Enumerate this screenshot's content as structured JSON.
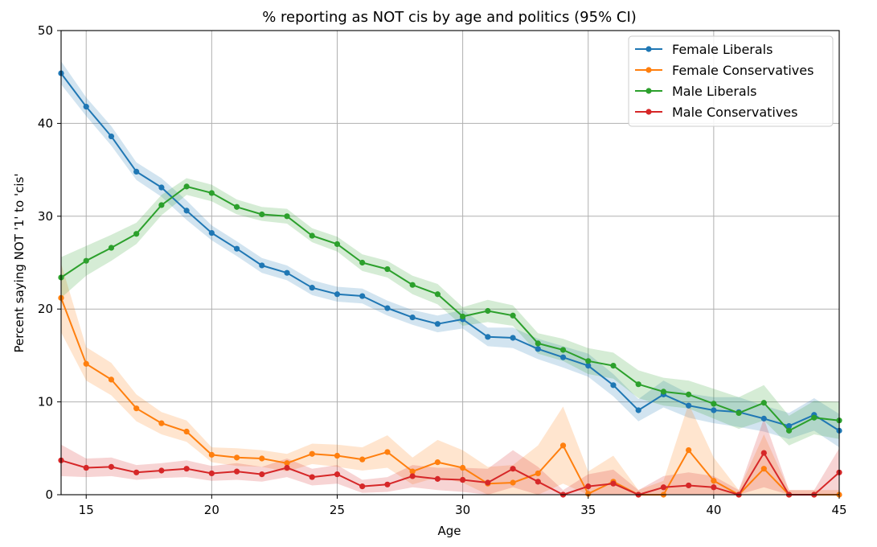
{
  "chart_data": {
    "type": "line",
    "title": "% reporting as NOT cis by age and politics (95% CI)",
    "xlabel": "Age",
    "ylabel": "Percent saying NOT '1' to 'cis'",
    "xlim": [
      14,
      45
    ],
    "ylim": [
      0,
      50
    ],
    "xticks": [
      15,
      20,
      25,
      30,
      35,
      40,
      45
    ],
    "yticks": [
      0,
      10,
      20,
      30,
      40,
      50
    ],
    "grid": true,
    "legend_position": "top-right",
    "x": [
      14,
      15,
      16,
      17,
      18,
      19,
      20,
      21,
      22,
      23,
      24,
      25,
      26,
      27,
      28,
      29,
      30,
      31,
      32,
      33,
      34,
      35,
      36,
      37,
      38,
      39,
      40,
      41,
      42,
      43,
      44,
      45
    ],
    "series": [
      {
        "name": "Female Liberals",
        "color": "#1f77b4",
        "values": [
          45.4,
          41.8,
          38.6,
          34.8,
          33.1,
          30.6,
          28.2,
          26.5,
          24.7,
          23.9,
          22.3,
          21.6,
          21.4,
          20.1,
          19.1,
          18.4,
          18.9,
          17.0,
          16.9,
          15.7,
          14.8,
          13.9,
          11.8,
          9.1,
          10.8,
          9.6,
          9.1,
          8.9,
          8.2,
          7.4,
          8.6,
          6.9
        ],
        "ci_low": [
          44.2,
          40.8,
          37.6,
          33.9,
          32.1,
          29.6,
          27.4,
          25.7,
          23.9,
          23.1,
          21.5,
          20.8,
          20.6,
          19.3,
          18.3,
          17.5,
          17.9,
          16.0,
          15.8,
          14.6,
          13.7,
          12.7,
          10.6,
          7.9,
          9.4,
          8.3,
          7.7,
          7.3,
          6.8,
          6.0,
          6.9,
          5.1
        ],
        "ci_high": [
          46.7,
          42.8,
          39.7,
          35.8,
          34.1,
          31.7,
          29.0,
          27.3,
          25.5,
          24.7,
          23.1,
          22.4,
          22.2,
          20.9,
          19.9,
          19.3,
          19.9,
          18.0,
          18.0,
          16.8,
          16.0,
          15.2,
          13.0,
          10.3,
          12.3,
          10.9,
          10.5,
          10.5,
          9.6,
          8.8,
          10.4,
          8.7
        ]
      },
      {
        "name": "Female Conservatives",
        "color": "#ff7f0e",
        "values": [
          21.2,
          14.1,
          12.4,
          9.3,
          7.7,
          6.8,
          4.3,
          4.0,
          3.9,
          3.4,
          4.4,
          4.2,
          3.8,
          4.6,
          2.5,
          3.5,
          2.9,
          1.2,
          1.3,
          2.3,
          5.3,
          0.1,
          1.4,
          0.0,
          0.0,
          4.8,
          1.5,
          0.0,
          2.8,
          0.0,
          0.0,
          0.0
        ],
        "ci_low": [
          17.5,
          12.3,
          10.7,
          7.9,
          6.5,
          5.7,
          3.5,
          3.1,
          3.0,
          2.5,
          3.3,
          3.0,
          2.6,
          2.9,
          1.1,
          1.9,
          1.3,
          0.0,
          0.0,
          0.0,
          1.2,
          0.0,
          0.0,
          0.0,
          0.0,
          0.0,
          0.0,
          0.0,
          0.0,
          0.0,
          0.0,
          0.0
        ],
        "ci_high": [
          24.9,
          15.9,
          14.2,
          10.8,
          8.9,
          8.0,
          5.1,
          5.0,
          4.8,
          4.4,
          5.5,
          5.4,
          5.1,
          6.4,
          4.0,
          5.9,
          4.8,
          3.0,
          3.2,
          5.3,
          9.5,
          2.5,
          4.2,
          0.5,
          1.5,
          9.8,
          4.0,
          0.5,
          6.5,
          0.5,
          0.5,
          0.5
        ]
      },
      {
        "name": "Male Liberals",
        "color": "#2ca02c",
        "values": [
          23.4,
          25.2,
          26.6,
          28.1,
          31.2,
          33.2,
          32.5,
          31.0,
          30.2,
          30.0,
          27.9,
          27.0,
          25.0,
          24.3,
          22.6,
          21.6,
          19.2,
          19.8,
          19.3,
          16.3,
          15.6,
          14.4,
          13.9,
          11.9,
          11.1,
          10.8,
          9.8,
          8.8,
          9.9,
          6.9,
          8.3,
          8.0
        ],
        "ci_low": [
          21.2,
          23.6,
          25.2,
          27.0,
          30.1,
          32.3,
          31.6,
          30.2,
          29.5,
          29.2,
          27.2,
          26.2,
          24.1,
          23.4,
          21.6,
          20.5,
          18.2,
          18.6,
          18.2,
          15.2,
          14.4,
          13.0,
          12.5,
          10.4,
          9.6,
          9.3,
          8.2,
          7.1,
          8.0,
          5.3,
          6.5,
          6.0
        ],
        "ci_high": [
          25.6,
          26.8,
          28.0,
          29.3,
          32.3,
          34.1,
          33.4,
          31.8,
          31.0,
          30.8,
          28.7,
          27.8,
          25.9,
          25.2,
          23.6,
          22.7,
          20.2,
          21.0,
          20.4,
          17.4,
          16.8,
          15.8,
          15.3,
          13.4,
          12.6,
          12.3,
          11.4,
          10.5,
          11.8,
          8.5,
          10.1,
          10.0
        ]
      },
      {
        "name": "Male Conservatives",
        "color": "#d62728",
        "values": [
          3.7,
          2.9,
          3.0,
          2.4,
          2.6,
          2.8,
          2.3,
          2.5,
          2.2,
          2.9,
          1.9,
          2.2,
          0.9,
          1.1,
          2.0,
          1.7,
          1.6,
          1.3,
          2.8,
          1.4,
          0.0,
          0.9,
          1.2,
          0.0,
          0.8,
          1.0,
          0.8,
          0.0,
          4.5,
          0.0,
          0.0,
          2.4
        ],
        "ci_low": [
          2.0,
          1.9,
          2.0,
          1.6,
          1.8,
          1.9,
          1.5,
          1.6,
          1.4,
          1.9,
          1.0,
          1.2,
          0.2,
          0.3,
          0.8,
          0.5,
          0.3,
          0.0,
          0.8,
          0.0,
          0.0,
          0.0,
          0.0,
          0.0,
          0.0,
          0.0,
          0.0,
          0.0,
          0.8,
          0.0,
          0.0,
          0.0
        ],
        "ci_high": [
          5.4,
          3.9,
          4.0,
          3.2,
          3.4,
          3.7,
          3.1,
          3.4,
          3.0,
          3.9,
          2.8,
          3.2,
          1.6,
          1.9,
          3.2,
          2.9,
          2.9,
          2.8,
          4.8,
          3.0,
          0.5,
          2.2,
          2.7,
          0.5,
          2.0,
          2.4,
          2.0,
          0.5,
          8.2,
          0.5,
          0.5,
          5.0
        ]
      }
    ]
  }
}
